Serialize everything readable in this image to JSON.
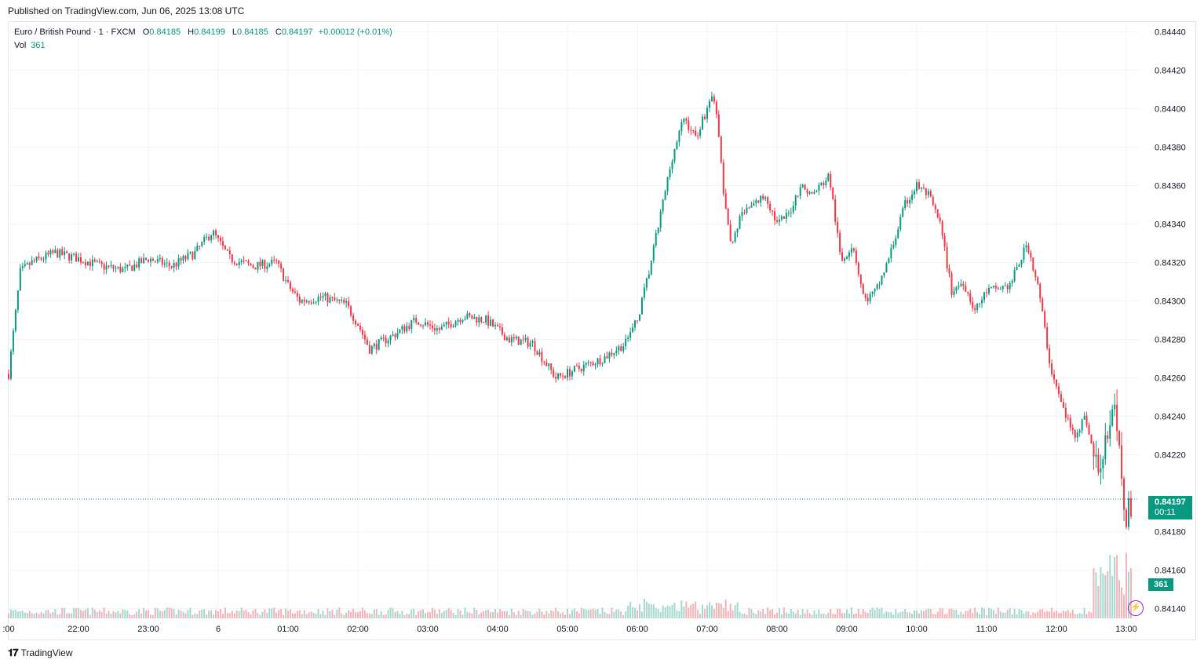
{
  "header": {
    "published": "Published on TradingView.com, Jun 06, 2025 13:08 UTC"
  },
  "legend": {
    "symbol": "Euro / British Pound · 1 · FXCM",
    "open_label": "O",
    "open": "0.84185",
    "high_label": "H",
    "high": "0.84199",
    "low_label": "L",
    "low": "0.84185",
    "close_label": "C",
    "close": "0.84197",
    "change": "+0.00012 (+0.01%)",
    "vol_label": "Vol",
    "vol": "361"
  },
  "current": {
    "price": "0.84197",
    "countdown": "00:11",
    "volume": "361"
  },
  "footer": {
    "brand": "TradingView"
  },
  "colors": {
    "up": "#089981",
    "down": "#f23645",
    "up_vol": "#a6d8cf",
    "down_vol": "#f7b2b7",
    "grid": "#f0f3fa",
    "text": "#131722"
  },
  "icons": {
    "logo": "tradingview-logo-icon",
    "alert": "lightning-icon"
  },
  "chart_data": {
    "type": "candlestick",
    "y_ticks": [
      "0.84440",
      "0.84420",
      "0.84400",
      "0.84380",
      "0.84360",
      "0.84340",
      "0.84320",
      "0.84300",
      "0.84280",
      "0.84260",
      "0.84240",
      "0.84220",
      "0.84180",
      "0.84160",
      "0.84140"
    ],
    "ylim": [
      0.84135,
      0.84445
    ],
    "x_ticks": [
      ":00",
      "22:00",
      "23:00",
      "6",
      "01:00",
      "02:00",
      "03:00",
      "04:00",
      "05:00",
      "06:00",
      "07:00",
      "08:00",
      "09:00",
      "10:00",
      "11:00",
      "12:00",
      "13:00"
    ],
    "last_price": 0.84197,
    "price_path": [
      [
        "21:00",
        0.84262
      ],
      [
        "21:10",
        0.84315
      ],
      [
        "21:20",
        0.8432
      ],
      [
        "21:40",
        0.84325
      ],
      [
        "22:00",
        0.84322
      ],
      [
        "22:20",
        0.84318
      ],
      [
        "22:40",
        0.84316
      ],
      [
        "23:00",
        0.84322
      ],
      [
        "23:20",
        0.84318
      ],
      [
        "23:40",
        0.84325
      ],
      [
        "23:55",
        0.84336
      ],
      [
        "00:10",
        0.84322
      ],
      [
        "00:30",
        0.84318
      ],
      [
        "00:50",
        0.8432
      ],
      [
        "01:00",
        0.84308
      ],
      [
        "01:10",
        0.843
      ],
      [
        "01:30",
        0.84302
      ],
      [
        "01:50",
        0.84298
      ],
      [
        "02:00",
        0.84288
      ],
      [
        "02:10",
        0.84275
      ],
      [
        "02:30",
        0.84282
      ],
      [
        "02:50",
        0.8429
      ],
      [
        "03:10",
        0.84285
      ],
      [
        "03:30",
        0.84292
      ],
      [
        "03:50",
        0.8429
      ],
      [
        "04:10",
        0.8428
      ],
      [
        "04:30",
        0.84278
      ],
      [
        "04:50",
        0.8426
      ],
      [
        "05:10",
        0.84265
      ],
      [
        "05:30",
        0.8427
      ],
      [
        "05:50",
        0.84278
      ],
      [
        "06:00",
        0.8429
      ],
      [
        "06:10",
        0.84315
      ],
      [
        "06:20",
        0.84345
      ],
      [
        "06:30",
        0.84375
      ],
      [
        "06:40",
        0.84395
      ],
      [
        "06:50",
        0.84385
      ],
      [
        "07:00",
        0.844
      ],
      [
        "07:05",
        0.8441
      ],
      [
        "07:10",
        0.84385
      ],
      [
        "07:15",
        0.8435
      ],
      [
        "07:20",
        0.8433
      ],
      [
        "07:30",
        0.84345
      ],
      [
        "07:40",
        0.8435
      ],
      [
        "07:50",
        0.84355
      ],
      [
        "08:00",
        0.8434
      ],
      [
        "08:10",
        0.84345
      ],
      [
        "08:20",
        0.8436
      ],
      [
        "08:30",
        0.84355
      ],
      [
        "08:45",
        0.84365
      ],
      [
        "08:55",
        0.8432
      ],
      [
        "09:05",
        0.8433
      ],
      [
        "09:15",
        0.843
      ],
      [
        "09:25",
        0.84305
      ],
      [
        "09:35",
        0.8432
      ],
      [
        "09:50",
        0.8435
      ],
      [
        "10:00",
        0.8436
      ],
      [
        "10:10",
        0.84355
      ],
      [
        "10:20",
        0.8434
      ],
      [
        "10:30",
        0.84305
      ],
      [
        "10:40",
        0.8431
      ],
      [
        "10:50",
        0.84295
      ],
      [
        "11:00",
        0.84305
      ],
      [
        "11:20",
        0.84308
      ],
      [
        "11:35",
        0.8433
      ],
      [
        "11:45",
        0.84305
      ],
      [
        "11:55",
        0.84265
      ],
      [
        "12:05",
        0.84245
      ],
      [
        "12:15",
        0.8423
      ],
      [
        "12:25",
        0.8424
      ],
      [
        "12:35",
        0.8421
      ],
      [
        "12:40",
        0.84225
      ],
      [
        "12:50",
        0.8424
      ],
      [
        "12:55",
        0.84215
      ],
      [
        "13:00",
        0.84185
      ],
      [
        "13:05",
        0.84197
      ]
    ]
  }
}
